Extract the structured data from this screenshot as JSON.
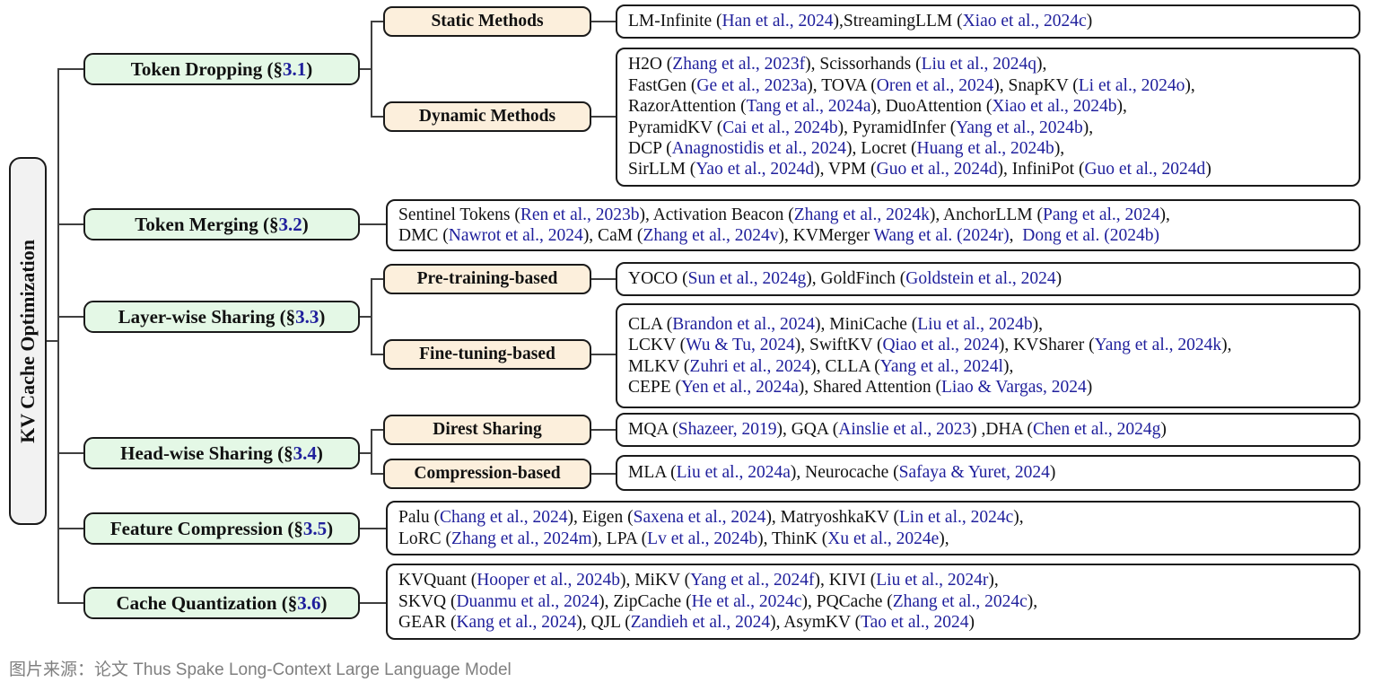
{
  "root": {
    "label": "KV Cache Optimization"
  },
  "caption": "图片来源：论文 Thus Spake Long-Context Large Language Model",
  "colors": {
    "category_fill": "#e4f8e6",
    "subcategory_fill": "#fcefdc",
    "root_fill": "#f2f2f2",
    "leaf_fill": "#ffffff",
    "border": "#1a1a1a",
    "line": "#3f3f3f",
    "citation_blue": "#1f1f9c",
    "text": "#111111",
    "caption_gray": "#7f7f7f"
  },
  "branches": [
    {
      "pre": "Token Dropping (§",
      "sec": "3.1",
      "post": ")"
    },
    {
      "pre": "Token Merging (§",
      "sec": "3.2",
      "post": ")"
    },
    {
      "pre": "Layer-wise Sharing (§",
      "sec": "3.3",
      "post": ")"
    },
    {
      "pre": "Head-wise Sharing (§",
      "sec": "3.4",
      "post": ")"
    },
    {
      "pre": "Feature Compression (§",
      "sec": "3.5",
      "post": ")"
    },
    {
      "pre": "Cache Quantization (§",
      "sec": "3.6",
      "post": ")"
    }
  ],
  "subcategories": {
    "static": "Static Methods",
    "dynamic": "Dynamic Methods",
    "pretrain": "Pre-training-based",
    "finetune": "Fine-tuning-based",
    "direst": "Direst Sharing",
    "compression": "Compression-based"
  },
  "leaves": {
    "static_methods": {
      "lines": [
        [
          [
            "LM-Infinite (",
            0
          ],
          [
            "Han et al., 2024",
            1
          ],
          [
            "),StreamingLLM (",
            0
          ],
          [
            "Xiao et al., 2024c",
            1
          ],
          [
            ")",
            0
          ]
        ]
      ]
    },
    "dynamic_methods": {
      "lines": [
        [
          [
            "H2O (",
            0
          ],
          [
            "Zhang et al., 2023f",
            1
          ],
          [
            "), Scissorhands (",
            0
          ],
          [
            "Liu et al., 2024q",
            1
          ],
          [
            "),",
            0
          ]
        ],
        [
          [
            "FastGen (",
            0
          ],
          [
            "Ge et al., 2023a",
            1
          ],
          [
            "), TOVA (",
            0
          ],
          [
            "Oren et al., 2024",
            1
          ],
          [
            "), SnapKV (",
            0
          ],
          [
            "Li et al., 2024o",
            1
          ],
          [
            "),",
            0
          ]
        ],
        [
          [
            "RazorAttention (",
            0
          ],
          [
            "Tang et al., 2024a",
            1
          ],
          [
            "), DuoAttention (",
            0
          ],
          [
            "Xiao et al., 2024b",
            1
          ],
          [
            "),",
            0
          ]
        ],
        [
          [
            "PyramidKV (",
            0
          ],
          [
            "Cai et al., 2024b",
            1
          ],
          [
            "), PyramidInfer (",
            0
          ],
          [
            "Yang et al., 2024b",
            1
          ],
          [
            "),",
            0
          ]
        ],
        [
          [
            "DCP (",
            0
          ],
          [
            "Anagnostidis et al., 2024",
            1
          ],
          [
            "), Locret (",
            0
          ],
          [
            "Huang et al., 2024b",
            1
          ],
          [
            "),",
            0
          ]
        ],
        [
          [
            "SirLLM (",
            0
          ],
          [
            "Yao et al., 2024d",
            1
          ],
          [
            "), VPM (",
            0
          ],
          [
            "Guo et al., 2024d",
            1
          ],
          [
            "), InfiniPot (",
            0
          ],
          [
            "Guo et al., 2024d",
            1
          ],
          [
            ")",
            0
          ]
        ]
      ]
    },
    "token_merging": {
      "lines": [
        [
          [
            "Sentinel Tokens (",
            0
          ],
          [
            "Ren et al., 2023b",
            1
          ],
          [
            "), Activation Beacon (",
            0
          ],
          [
            "Zhang et al., 2024k",
            1
          ],
          [
            "), AnchorLLM (",
            0
          ],
          [
            "Pang et al., 2024",
            1
          ],
          [
            "),",
            0
          ]
        ],
        [
          [
            "DMC (",
            0
          ],
          [
            "Nawrot et al., 2024",
            1
          ],
          [
            "), CaM (",
            0
          ],
          [
            "Zhang et al., 2024v",
            1
          ],
          [
            "), KVMerger ",
            0
          ],
          [
            "Wang et al. (2024r)",
            1
          ],
          [
            ",  ",
            0
          ],
          [
            "Dong et al. (2024b)",
            1
          ]
        ]
      ]
    },
    "pre_training": {
      "lines": [
        [
          [
            "YOCO (",
            0
          ],
          [
            "Sun et al., 2024g",
            1
          ],
          [
            "), GoldFinch (",
            0
          ],
          [
            "Goldstein et al., 2024",
            1
          ],
          [
            ")",
            0
          ]
        ]
      ]
    },
    "fine_tuning": {
      "lines": [
        [
          [
            "CLA (",
            0
          ],
          [
            "Brandon et al., 2024",
            1
          ],
          [
            "), MiniCache (",
            0
          ],
          [
            "Liu et al., 2024b",
            1
          ],
          [
            "),",
            0
          ]
        ],
        [
          [
            "LCKV (",
            0
          ],
          [
            "Wu & Tu, 2024",
            1
          ],
          [
            "), SwiftKV (",
            0
          ],
          [
            "Qiao et al., 2024",
            1
          ],
          [
            "), KVSharer (",
            0
          ],
          [
            "Yang et al., 2024k",
            1
          ],
          [
            "),",
            0
          ]
        ],
        [
          [
            "MLKV (",
            0
          ],
          [
            "Zuhri et al., 2024",
            1
          ],
          [
            "), CLLA (",
            0
          ],
          [
            "Yang et al., 2024l",
            1
          ],
          [
            "),",
            0
          ]
        ],
        [
          [
            "CEPE (",
            0
          ],
          [
            "Yen et al., 2024a",
            1
          ],
          [
            "), Shared Attention (",
            0
          ],
          [
            "Liao & Vargas, 2024",
            1
          ],
          [
            ")",
            0
          ]
        ]
      ]
    },
    "direst_sharing": {
      "lines": [
        [
          [
            "MQA (",
            0
          ],
          [
            "Shazeer, 2019",
            1
          ],
          [
            "), GQA (",
            0
          ],
          [
            "Ainslie et al., 2023",
            1
          ],
          [
            ") ,DHA (",
            0
          ],
          [
            "Chen et al., 2024g",
            1
          ],
          [
            ")",
            0
          ]
        ]
      ]
    },
    "compression_based": {
      "lines": [
        [
          [
            "MLA (",
            0
          ],
          [
            "Liu et al., 2024a",
            1
          ],
          [
            "), Neurocache (",
            0
          ],
          [
            "Safaya & Yuret, 2024",
            1
          ],
          [
            ")",
            0
          ]
        ]
      ]
    },
    "feature_compression": {
      "lines": [
        [
          [
            "Palu (",
            0
          ],
          [
            "Chang et al., 2024",
            1
          ],
          [
            "), Eigen (",
            0
          ],
          [
            "Saxena et al., 2024",
            1
          ],
          [
            "), MatryoshkaKV (",
            0
          ],
          [
            "Lin et al., 2024c",
            1
          ],
          [
            "),",
            0
          ]
        ],
        [
          [
            "LoRC (",
            0
          ],
          [
            "Zhang et al., 2024m",
            1
          ],
          [
            "), LPA (",
            0
          ],
          [
            "Lv et al., 2024b",
            1
          ],
          [
            "), ThinK (",
            0
          ],
          [
            "Xu et al., 2024e",
            1
          ],
          [
            "),",
            0
          ]
        ]
      ]
    },
    "cache_quantization": {
      "lines": [
        [
          [
            "KVQuant (",
            0
          ],
          [
            "Hooper et al., 2024b",
            1
          ],
          [
            "), MiKV (",
            0
          ],
          [
            "Yang et al., 2024f",
            1
          ],
          [
            "), KIVI (",
            0
          ],
          [
            "Liu et al., 2024r",
            1
          ],
          [
            "),",
            0
          ]
        ],
        [
          [
            "SKVQ (",
            0
          ],
          [
            "Duanmu et al., 2024",
            1
          ],
          [
            "), ZipCache (",
            0
          ],
          [
            "He et al., 2024c",
            1
          ],
          [
            "), PQCache (",
            0
          ],
          [
            "Zhang et al., 2024c",
            1
          ],
          [
            "),",
            0
          ]
        ],
        [
          [
            "GEAR (",
            0
          ],
          [
            "Kang et al., 2024",
            1
          ],
          [
            "), QJL (",
            0
          ],
          [
            "Zandieh et al., 2024",
            1
          ],
          [
            "), AsymKV (",
            0
          ],
          [
            "Tao et al., 2024",
            1
          ],
          [
            ")",
            0
          ]
        ]
      ]
    }
  }
}
